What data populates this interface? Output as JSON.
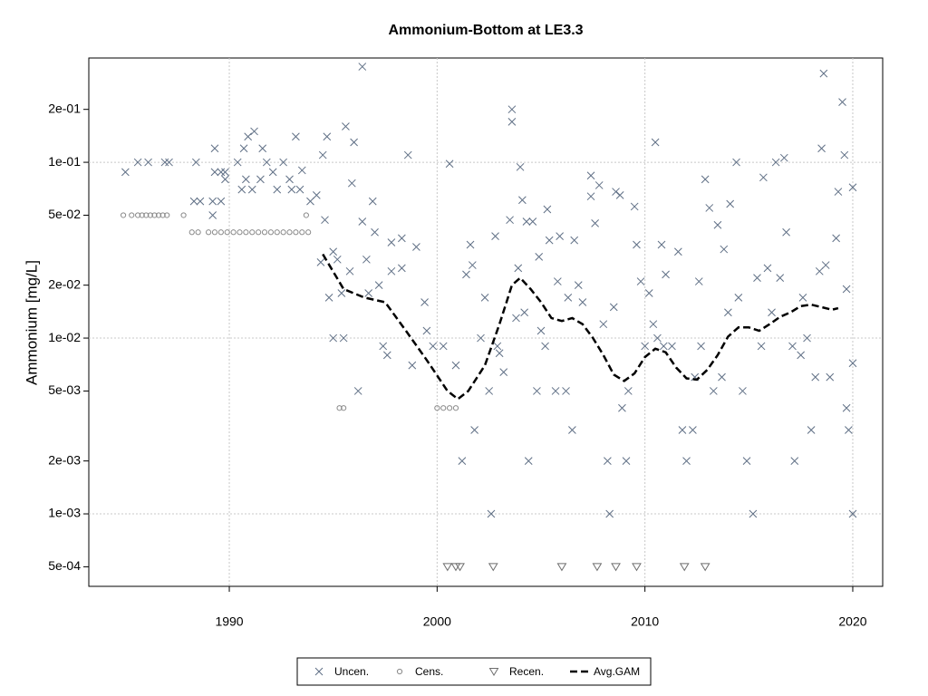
{
  "chart_data": {
    "type": "scatter",
    "title": "Ammonium-Bottom at LE3.3",
    "y_label": "Ammonium [mg/L]",
    "log_y": true,
    "grid": true,
    "xlim": [
      1983.24,
      2021.44
    ],
    "xticks": [
      1990,
      2000,
      2010,
      2020
    ],
    "ylim": [
      0.000387,
      0.392
    ],
    "yticks": [
      {
        "value": 0.0005,
        "label": "5e-04"
      },
      {
        "value": 0.001,
        "label": "1e-03"
      },
      {
        "value": 0.002,
        "label": "2e-03"
      },
      {
        "value": 0.005,
        "label": "5e-03"
      },
      {
        "value": 0.01,
        "label": "1e-02"
      },
      {
        "value": 0.02,
        "label": "2e-02"
      },
      {
        "value": 0.05,
        "label": "5e-02"
      },
      {
        "value": 0.1,
        "label": "1e-01"
      },
      {
        "value": 0.2,
        "label": "2e-01"
      }
    ],
    "series": [
      {
        "name": "Uncen.",
        "marker": "x",
        "color": "#5f6f85",
        "x": [
          1985.0,
          1985.6,
          1986.1,
          1986.9,
          1987.1,
          1988.4,
          1988.3,
          1988.6,
          1989.3,
          1989.3,
          1989.6,
          1989.8,
          1989.8,
          1989.2,
          1989.6,
          1989.2,
          1990.4,
          1990.6,
          1990.7,
          1990.9,
          1991.2,
          1991.1,
          1990.8,
          1991.5,
          1991.6,
          1991.8,
          1992.3,
          1992.6,
          1992.9,
          1993.2,
          1993.4,
          1993.5,
          1992.1,
          1993.0,
          1993.9,
          1994.2,
          1994.5,
          1994.7,
          1994.6,
          1994.4,
          1994.8,
          1995.0,
          1995.0,
          1995.2,
          1995.4,
          1995.5,
          1995.6,
          1995.8,
          1995.9,
          1996.0,
          1996.2,
          1996.4,
          1996.4,
          1996.6,
          1996.7,
          1996.9,
          1997.0,
          1997.2,
          1997.4,
          1997.6,
          1997.8,
          1997.8,
          1998.3,
          1998.3,
          1998.6,
          1998.8,
          1999.0,
          1999.4,
          1999.5,
          1999.8,
          2000.3,
          2000.6,
          2000.9,
          2001.2,
          2001.4,
          2001.6,
          2001.7,
          2001.8,
          2002.1,
          2002.3,
          2002.5,
          2002.6,
          2002.8,
          2002.9,
          2003.0,
          2003.2,
          2003.5,
          2003.6,
          2003.6,
          2003.8,
          2003.9,
          2004.0,
          2004.1,
          2004.2,
          2004.3,
          2004.4,
          2004.6,
          2004.8,
          2004.9,
          2005.0,
          2005.2,
          2005.3,
          2005.4,
          2005.7,
          2005.8,
          2005.9,
          2006.2,
          2006.3,
          2006.5,
          2006.6,
          2006.8,
          2007.0,
          2007.4,
          2007.4,
          2007.6,
          2007.8,
          2008.0,
          2008.2,
          2008.3,
          2008.5,
          2008.6,
          2008.8,
          2008.9,
          2009.1,
          2009.2,
          2009.5,
          2009.6,
          2009.8,
          2010.0,
          2010.2,
          2010.4,
          2010.5,
          2010.6,
          2010.8,
          2010.9,
          2011.0,
          2011.3,
          2011.6,
          2011.8,
          2012.0,
          2012.3,
          2012.4,
          2012.6,
          2012.7,
          2012.9,
          2013.1,
          2013.3,
          2013.5,
          2013.7,
          2013.8,
          2014.0,
          2014.1,
          2014.4,
          2014.5,
          2014.7,
          2014.9,
          2015.2,
          2015.4,
          2015.6,
          2015.7,
          2015.9,
          2016.1,
          2016.3,
          2016.5,
          2016.7,
          2016.8,
          2017.1,
          2017.2,
          2017.5,
          2017.6,
          2017.8,
          2018.0,
          2018.2,
          2018.4,
          2018.5,
          2018.6,
          2018.7,
          2018.9,
          2019.2,
          2019.3,
          2019.5,
          2019.6,
          2019.7,
          2019.8,
          2020.0,
          2020.0,
          2020.0,
          2019.7
        ],
        "values": [
          0.088,
          0.1,
          0.1,
          0.1,
          0.1,
          0.1,
          0.06,
          0.06,
          0.12,
          0.088,
          0.088,
          0.08,
          0.088,
          0.06,
          0.06,
          0.05,
          0.1,
          0.07,
          0.12,
          0.14,
          0.15,
          0.07,
          0.08,
          0.08,
          0.12,
          0.1,
          0.07,
          0.1,
          0.08,
          0.14,
          0.07,
          0.09,
          0.088,
          0.07,
          0.06,
          0.065,
          0.11,
          0.14,
          0.047,
          0.027,
          0.017,
          0.01,
          0.031,
          0.028,
          0.018,
          0.01,
          0.16,
          0.024,
          0.076,
          0.13,
          0.005,
          0.35,
          0.046,
          0.028,
          0.018,
          0.06,
          0.04,
          0.02,
          0.009,
          0.008,
          0.024,
          0.035,
          0.025,
          0.037,
          0.11,
          0.007,
          0.033,
          0.016,
          0.011,
          0.009,
          0.009,
          0.098,
          0.007,
          0.002,
          0.023,
          0.034,
          0.026,
          0.003,
          0.01,
          0.017,
          0.005,
          0.001,
          0.038,
          0.009,
          0.0082,
          0.0064,
          0.047,
          0.17,
          0.2,
          0.013,
          0.025,
          0.094,
          0.061,
          0.014,
          0.046,
          0.002,
          0.046,
          0.005,
          0.029,
          0.011,
          0.009,
          0.054,
          0.036,
          0.005,
          0.021,
          0.038,
          0.005,
          0.017,
          0.003,
          0.036,
          0.02,
          0.016,
          0.084,
          0.064,
          0.045,
          0.074,
          0.012,
          0.002,
          0.001,
          0.015,
          0.068,
          0.065,
          0.004,
          0.002,
          0.005,
          0.056,
          0.034,
          0.021,
          0.009,
          0.018,
          0.012,
          0.13,
          0.01,
          0.034,
          0.009,
          0.023,
          0.009,
          0.031,
          0.003,
          0.002,
          0.003,
          0.006,
          0.021,
          0.009,
          0.08,
          0.055,
          0.005,
          0.044,
          0.006,
          0.032,
          0.014,
          0.058,
          0.1,
          0.017,
          0.005,
          0.002,
          0.001,
          0.022,
          0.009,
          0.082,
          0.025,
          0.014,
          0.1,
          0.022,
          0.106,
          0.04,
          0.009,
          0.002,
          0.008,
          0.017,
          0.01,
          0.003,
          0.006,
          0.024,
          0.12,
          0.32,
          0.026,
          0.006,
          0.037,
          0.068,
          0.22,
          0.11,
          0.019,
          0.003,
          0.0072,
          0.001,
          0.072,
          0.004
        ]
      },
      {
        "name": "Cens.",
        "marker": "circle",
        "color": "#8a8a8a",
        "x": [
          1984.9,
          1985.3,
          1985.6,
          1985.8,
          1986.0,
          1986.2,
          1986.4,
          1986.6,
          1986.8,
          1987.0,
          1987.8,
          1988.2,
          1988.5,
          1989.0,
          1989.3,
          1989.6,
          1989.9,
          1990.2,
          1990.5,
          1990.8,
          1991.1,
          1991.4,
          1991.7,
          1992.0,
          1992.3,
          1992.6,
          1992.9,
          1993.2,
          1993.5,
          1993.8,
          1993.7,
          1995.3,
          1995.5,
          2000.0,
          2000.3,
          2000.6,
          2000.9
        ],
        "values": [
          0.05,
          0.05,
          0.05,
          0.05,
          0.05,
          0.05,
          0.05,
          0.05,
          0.05,
          0.05,
          0.05,
          0.04,
          0.04,
          0.04,
          0.04,
          0.04,
          0.04,
          0.04,
          0.04,
          0.04,
          0.04,
          0.04,
          0.04,
          0.04,
          0.04,
          0.04,
          0.04,
          0.04,
          0.04,
          0.04,
          0.05,
          0.004,
          0.004,
          0.004,
          0.004,
          0.004,
          0.004
        ]
      },
      {
        "name": "Recen.",
        "marker": "triangle",
        "color": "#6e6e6e",
        "x": [
          2000.5,
          2000.9,
          2001.1,
          2002.7,
          2006.0,
          2007.7,
          2008.6,
          2009.6,
          2011.9,
          2012.9
        ],
        "values": [
          0.0005,
          0.0005,
          0.0005,
          0.0005,
          0.0005,
          0.0005,
          0.0005,
          0.0005,
          0.0005,
          0.0005
        ]
      },
      {
        "name": "Avg.GAM",
        "marker": "line",
        "color": "#000000",
        "x": [
          1994.5,
          1995.5,
          1996.5,
          1997.5,
          1998.5,
          1999.5,
          2000.5,
          2001.0,
          2001.5,
          2002.3,
          2003.0,
          2003.6,
          2004.0,
          2004.5,
          2005.0,
          2005.5,
          2006.0,
          2006.5,
          2007.0,
          2007.5,
          2008.0,
          2008.5,
          2009.0,
          2009.5,
          2010.0,
          2010.5,
          2011.0,
          2011.5,
          2012.0,
          2012.5,
          2013.0,
          2013.5,
          2014.0,
          2014.5,
          2015.0,
          2015.5,
          2016.0,
          2016.5,
          2017.0,
          2017.5,
          2018.0,
          2018.5,
          2019.0,
          2019.3
        ],
        "values": [
          0.03,
          0.019,
          0.017,
          0.016,
          0.011,
          0.0075,
          0.005,
          0.0045,
          0.005,
          0.007,
          0.012,
          0.02,
          0.022,
          0.019,
          0.016,
          0.013,
          0.0125,
          0.013,
          0.012,
          0.01,
          0.008,
          0.0062,
          0.0057,
          0.0063,
          0.0078,
          0.0087,
          0.0083,
          0.0068,
          0.0059,
          0.0058,
          0.0066,
          0.008,
          0.0102,
          0.0115,
          0.0115,
          0.011,
          0.012,
          0.0132,
          0.014,
          0.0152,
          0.0155,
          0.015,
          0.0145,
          0.0148
        ]
      }
    ]
  }
}
